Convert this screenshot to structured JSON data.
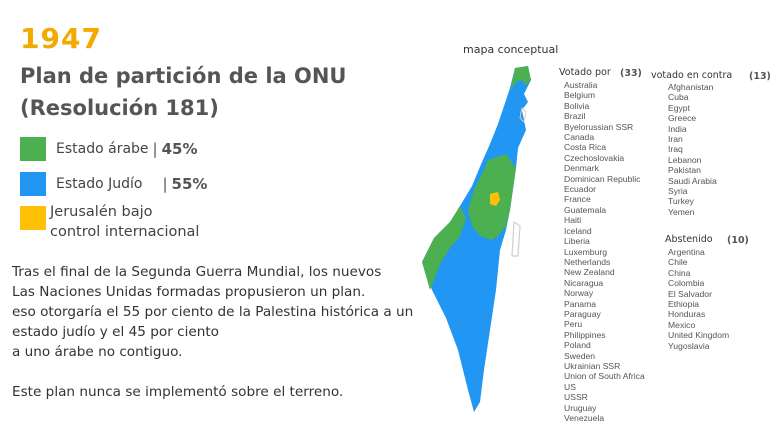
{
  "header": {
    "year": "1947",
    "title_line1": "Plan de partición de la ONU",
    "title_line2": "(Resolución 181)"
  },
  "legend": {
    "arab": {
      "label": "Estado árabe",
      "separator": "|",
      "percent": "45%",
      "color": "#4caf50"
    },
    "jewish": {
      "label": "Estado Judío",
      "separator": "|",
      "percent": "55%",
      "color": "#2196f3"
    },
    "jerusalem": {
      "label_line1": "Jerusalén bajo",
      "label_line2": "control internacional",
      "color": "#ffc107"
    }
  },
  "body": {
    "lines": [
      "Tras el final de la Segunda Guerra Mundial, los nuevos",
      "Las Naciones Unidas formadas propusieron un plan.",
      "eso otorgaría el 55 por ciento de la Palestina histórica a un",
      "estado judío y el 45 por ciento",
      "a uno árabe no contiguo."
    ],
    "closing": "Este plan nunca se implementó sobre el terreno."
  },
  "map": {
    "caption": "mapa conceptual",
    "colors": {
      "arab": "#4caf50",
      "jewish": "#2196f3",
      "jerusalem": "#ffc107"
    }
  },
  "votes": {
    "for": {
      "heading": "Votado por",
      "count": "(33)",
      "countries": [
        "Australia",
        "Belgium",
        "Bolivia",
        "Brazil",
        "Byelorussian SSR",
        "Canada",
        "Costa Rica",
        "Czechoslovakia",
        "Denmark",
        "Dominican Republic",
        "Ecuador",
        "France",
        "Guatemala",
        "Haiti",
        "Iceland",
        "Liberia",
        "Luxemburg",
        "Netherlands",
        "New Zealand",
        "Nicaragua",
        "Norway",
        "Panama",
        "Paraguay",
        "Peru",
        "Philippines",
        "Poland",
        "Sweden",
        "Ukrainian SSR",
        "Union of South Africa",
        "US",
        "USSR",
        "Uruguay",
        "Venezuela"
      ]
    },
    "against": {
      "heading": "votado en contra",
      "count": "(13)",
      "countries": [
        "Afghanistan",
        "Cuba",
        "Egypt",
        "Greece",
        "India",
        "Iran",
        "Iraq",
        "Lebanon",
        "Pakistan",
        "Saudi Arabia",
        "Syria",
        "Turkey",
        "Yemen"
      ]
    },
    "abstained": {
      "heading": "Abstenido",
      "count": "(10)",
      "countries": [
        "Argentina",
        "Chile",
        "China",
        "Colombia",
        "El Salvador",
        "Ethiopia",
        "Honduras",
        "Mexico",
        "United Kingdom",
        "Yugoslavia"
      ]
    }
  }
}
